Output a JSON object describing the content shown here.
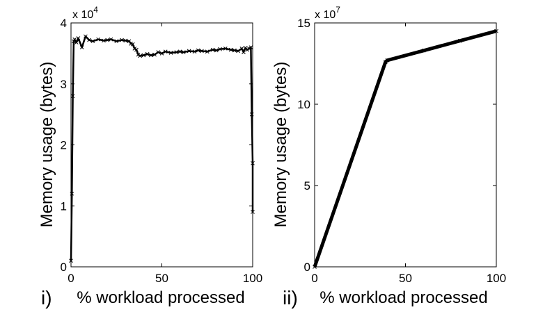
{
  "figure": {
    "background": "#ffffff",
    "panel_labels": [
      "i)",
      "ii)"
    ]
  },
  "chart_data": [
    {
      "type": "line",
      "marker": "x",
      "color": "#000000",
      "xlabel": "% workload processed",
      "ylabel": "Memory usage (bytes)",
      "xlim": [
        0,
        100
      ],
      "ylim": [
        0,
        40000
      ],
      "x_ticks": [
        0,
        50,
        100
      ],
      "y_ticks": [
        0,
        10000,
        20000,
        30000,
        40000
      ],
      "y_tick_labels": [
        "0",
        "1",
        "2",
        "3",
        "4"
      ],
      "x_tick_labels": [
        "0",
        "50",
        "100"
      ],
      "y_multiplier_base": "x 10",
      "y_multiplier_exp": "4",
      "grid": false,
      "series": [
        {
          "x": [
            0,
            0.5,
            1,
            1.5,
            2,
            3,
            4,
            6,
            8,
            10,
            12,
            15,
            18,
            20,
            22,
            25,
            28,
            30,
            32,
            33,
            34,
            35,
            36,
            37,
            38,
            40,
            42,
            44,
            46,
            48,
            50,
            52,
            55,
            58,
            60,
            62,
            65,
            68,
            70,
            72,
            75,
            78,
            80,
            82,
            85,
            88,
            90,
            92,
            94,
            95,
            96,
            97,
            98,
            99,
            99.5,
            100,
            100
          ],
          "y": [
            1000,
            12000,
            28000,
            37000,
            37300,
            36800,
            37500,
            36000,
            37800,
            37200,
            37000,
            37300,
            37100,
            37200,
            37300,
            37000,
            37200,
            37100,
            37000,
            36600,
            36500,
            35800,
            35600,
            34800,
            34600,
            34700,
            34900,
            34700,
            34800,
            35200,
            35000,
            35300,
            35100,
            35200,
            35300,
            35200,
            35400,
            35300,
            35500,
            35400,
            35300,
            35600,
            35500,
            35700,
            35800,
            35600,
            35500,
            35400,
            35800,
            35200,
            35900,
            35600,
            35800,
            36000,
            25000,
            17000,
            9000
          ]
        }
      ]
    },
    {
      "type": "line",
      "marker": "x",
      "color": "#000000",
      "xlabel": "% workload processed",
      "ylabel": "Memory usage (bytes)",
      "xlim": [
        0,
        100
      ],
      "ylim": [
        0,
        150000000
      ],
      "x_ticks": [
        0,
        50,
        100
      ],
      "y_ticks": [
        0,
        50000000,
        100000000,
        150000000
      ],
      "y_tick_labels": [
        "0",
        "5",
        "10",
        "15"
      ],
      "x_tick_labels": [
        "0",
        "50",
        "100"
      ],
      "y_multiplier_base": "x 10",
      "y_multiplier_exp": "7",
      "grid": false,
      "series": [
        {
          "x": [
            0,
            39,
            40,
            60,
            80,
            100
          ],
          "y": [
            0,
            126000000,
            127000000,
            133000000,
            139000000,
            145000000
          ]
        }
      ]
    }
  ]
}
